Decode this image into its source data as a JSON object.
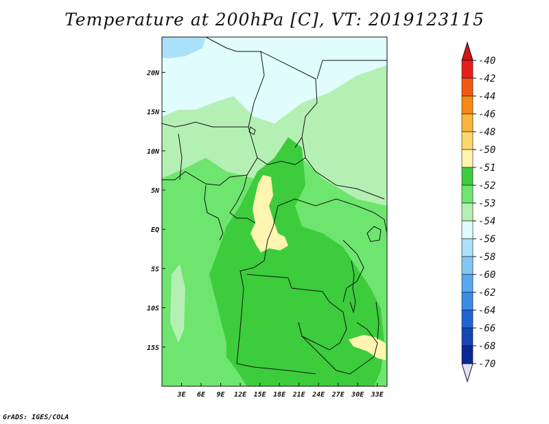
{
  "title": "Temperature at 200hPa [C], VT: 2019123115",
  "credit": "GrADS: IGES/COLA",
  "map": {
    "lon_range": [
      0,
      34.5
    ],
    "lat_range": [
      -20,
      24.5
    ],
    "lon_ticks": [
      "3E",
      "6E",
      "9E",
      "12E",
      "15E",
      "18E",
      "21E",
      "24E",
      "27E",
      "30E",
      "33E"
    ],
    "lat_ticks": [
      "20N",
      "15N",
      "10N",
      "5N",
      "EQ",
      "5S",
      "10S",
      "15S"
    ],
    "fill_levels": {
      "background": "-53",
      "dominant_south": "-52",
      "warm_patches": "-51",
      "cool_north": "-54",
      "coolest_northwest": "-56"
    }
  },
  "colorbar": {
    "labels": [
      "-40",
      "-42",
      "-44",
      "-46",
      "-48",
      "-50",
      "-51",
      "-52",
      "-53",
      "-54",
      "-56",
      "-58",
      "-60",
      "-62",
      "-64",
      "-66",
      "-68",
      "-70"
    ],
    "colors": [
      "#e81e1e",
      "#f25a14",
      "#f78a14",
      "#fbb43c",
      "#fbd76e",
      "#fdf5b0",
      "#3ccc3c",
      "#6ee56e",
      "#b4f0b4",
      "#e0fcfc",
      "#aae0fa",
      "#82c8f5",
      "#5aa8f0",
      "#3c8ce6",
      "#2064d2",
      "#1446b4",
      "#0a2896",
      "#0a0a6e"
    ],
    "top_arrow_color": "#d21414",
    "bottom_arrow_color": "#e0e0f8"
  }
}
